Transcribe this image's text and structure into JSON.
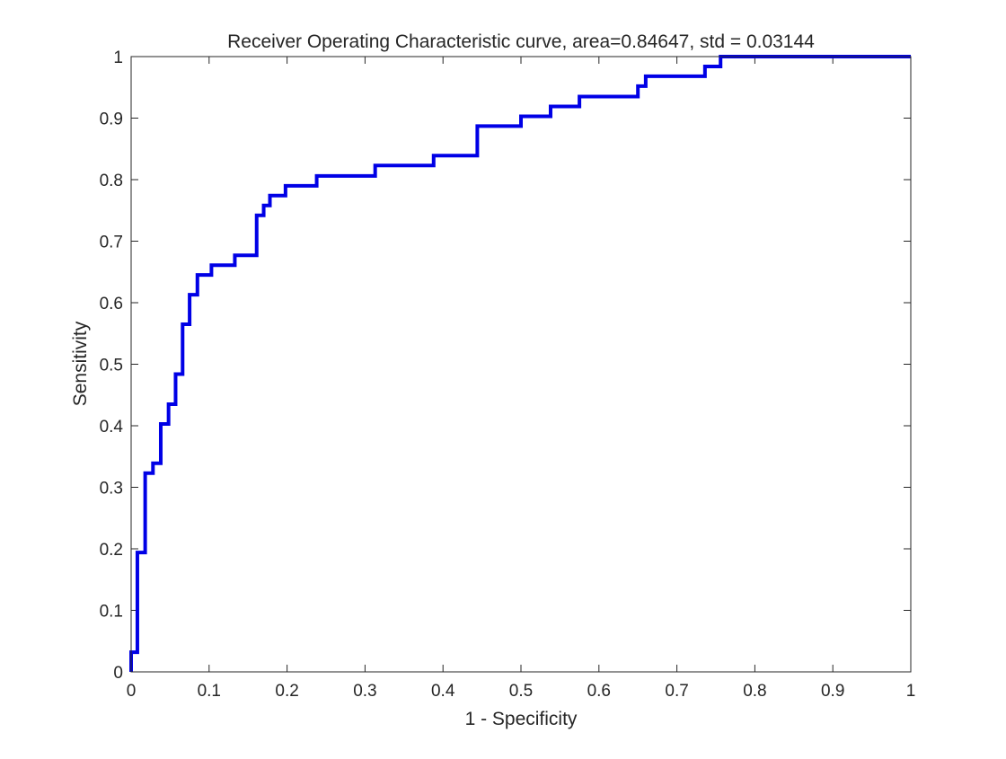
{
  "chart_data": {
    "type": "line",
    "title": "Receiver Operating Characteristic curve, area=0.84647, std = 0.03144",
    "xlabel": "1 - Specificity",
    "ylabel": "Sensitivity",
    "xlim": [
      0,
      1
    ],
    "ylim": [
      0,
      1
    ],
    "grid": false,
    "legend": "none",
    "line_style": "step",
    "x_ticks": [
      "0",
      "0.1",
      "0.2",
      "0.3",
      "0.4",
      "0.5",
      "0.6",
      "0.7",
      "0.8",
      "0.9",
      "1"
    ],
    "y_ticks": [
      "0",
      "0.1",
      "0.2",
      "0.3",
      "0.4",
      "0.5",
      "0.6",
      "0.7",
      "0.8",
      "0.9",
      "1"
    ],
    "series": [
      {
        "color": "#0000e6",
        "x": [
          0,
          0,
          0.008,
          0.008,
          0.018,
          0.018,
          0.028,
          0.028,
          0.038,
          0.038,
          0.048,
          0.048,
          0.057,
          0.057,
          0.066,
          0.066,
          0.075,
          0.075,
          0.085,
          0.085,
          0.103,
          0.103,
          0.133,
          0.133,
          0.161,
          0.161,
          0.17,
          0.17,
          0.178,
          0.178,
          0.198,
          0.198,
          0.238,
          0.238,
          0.313,
          0.313,
          0.388,
          0.388,
          0.444,
          0.444,
          0.5,
          0.5,
          0.538,
          0.538,
          0.575,
          0.575,
          0.65,
          0.65,
          0.66,
          0.66,
          0.736,
          0.736,
          0.756,
          0.756,
          1
        ],
        "y": [
          0,
          0.032,
          0.032,
          0.194,
          0.194,
          0.323,
          0.323,
          0.339,
          0.339,
          0.403,
          0.403,
          0.435,
          0.435,
          0.484,
          0.484,
          0.565,
          0.565,
          0.613,
          0.613,
          0.645,
          0.645,
          0.661,
          0.661,
          0.677,
          0.677,
          0.742,
          0.742,
          0.758,
          0.758,
          0.774,
          0.774,
          0.79,
          0.79,
          0.806,
          0.806,
          0.823,
          0.823,
          0.839,
          0.839,
          0.887,
          0.887,
          0.903,
          0.903,
          0.919,
          0.919,
          0.935,
          0.935,
          0.952,
          0.952,
          0.968,
          0.968,
          0.984,
          0.984,
          1,
          1
        ]
      }
    ]
  }
}
